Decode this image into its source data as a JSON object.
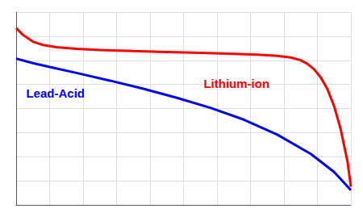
{
  "chart_data": {
    "type": "line",
    "tick_labels": false,
    "grid": true,
    "xlim": [
      0.0,
      1.0
    ],
    "xticks": [
      0.0,
      0.1,
      0.2,
      0.3,
      0.4,
      0.5,
      0.6,
      0.7,
      0.8,
      0.9,
      1.0
    ],
    "ylim": [
      0.2,
      1.05
    ],
    "yticks": [
      0.2,
      0.30625,
      0.4125,
      0.51875,
      0.625,
      0.73125,
      0.8375,
      0.94375,
      1.05
    ],
    "series": [
      {
        "name": "Lithium-ion",
        "color": "#ff0000",
        "x": [
          0.0,
          0.02,
          0.05,
          0.08,
          0.12,
          0.18,
          0.25,
          0.35,
          0.45,
          0.55,
          0.65,
          0.72,
          0.78,
          0.82,
          0.85,
          0.87,
          0.89,
          0.91,
          0.93,
          0.95,
          0.97,
          0.99,
          1.0
        ],
        "values": [
          0.98,
          0.95,
          0.92,
          0.905,
          0.895,
          0.888,
          0.883,
          0.878,
          0.874,
          0.87,
          0.866,
          0.862,
          0.857,
          0.85,
          0.838,
          0.822,
          0.798,
          0.762,
          0.71,
          0.635,
          0.53,
          0.39,
          0.28
        ]
      },
      {
        "name": "Lead-Acid",
        "color": "#0000ff",
        "x": [
          0.0,
          0.05,
          0.1,
          0.18,
          0.28,
          0.38,
          0.48,
          0.58,
          0.68,
          0.78,
          0.88,
          0.95,
          1.0
        ],
        "values": [
          0.845,
          0.825,
          0.808,
          0.782,
          0.748,
          0.712,
          0.672,
          0.628,
          0.576,
          0.51,
          0.425,
          0.345,
          0.265
        ]
      }
    ]
  }
}
